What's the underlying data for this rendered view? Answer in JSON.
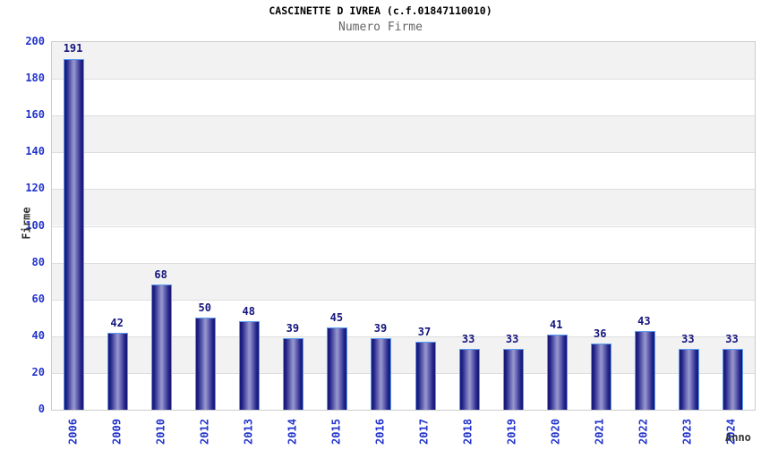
{
  "header": {
    "title": "CASCINETTE D IVREA (c.f.01847110010)",
    "subtitle": "Numero Firme"
  },
  "chart_data": {
    "type": "bar",
    "title": "CASCINETTE D IVREA (c.f.01847110010)",
    "subtitle": "Numero Firme",
    "categories": [
      "2006",
      "2009",
      "2010",
      "2012",
      "2013",
      "2014",
      "2015",
      "2016",
      "2017",
      "2018",
      "2019",
      "2020",
      "2021",
      "2022",
      "2023",
      "2024"
    ],
    "values": [
      191,
      42,
      68,
      50,
      48,
      39,
      45,
      39,
      37,
      33,
      33,
      41,
      36,
      43,
      33,
      33
    ],
    "xlabel": "Anno",
    "ylabel": "Firme",
    "ylim": [
      0,
      200
    ],
    "yticks": [
      0,
      20,
      40,
      60,
      80,
      100,
      120,
      140,
      160,
      180,
      200
    ],
    "grid": "horizontal-bands",
    "legend": "none"
  },
  "colors": {
    "title": "#000000",
    "subtitle": "#666666",
    "tick_label_blue": "#2233cc",
    "value_label_navy": "#15157d",
    "axis_title": "#333333",
    "bar_border_lightblue": "#5b9df0",
    "bar_gradient_edge": "#17176e",
    "bar_gradient_dark": "#23238c",
    "bar_gradient_center": "#9494cc",
    "band_gray": "#f2f2f2",
    "band_white": "#ffffff",
    "grid_line": "#dedede",
    "plot_border": "#cccccc"
  }
}
